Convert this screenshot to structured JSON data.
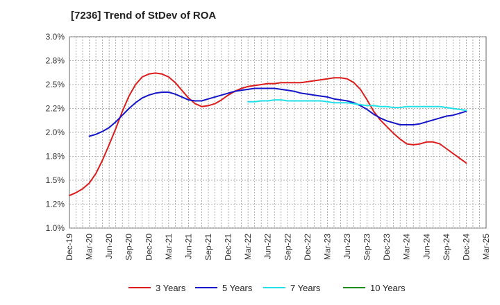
{
  "chart_data": {
    "type": "line",
    "title": "[7236]  Trend of StDev of ROA",
    "xlabel": "",
    "ylabel": "",
    "ylim": [
      1.0,
      3.0
    ],
    "y_ticks": [
      "3.0%",
      "2.8%",
      "2.5%",
      "2.2%",
      "2.0%",
      "1.8%",
      "1.5%",
      "1.2%",
      "1.0%"
    ],
    "y_tick_values": [
      3.0,
      2.75,
      2.5,
      2.25,
      2.0,
      1.75,
      1.5,
      1.25,
      1.0
    ],
    "x_ticks": [
      "Dec-19",
      "Mar-20",
      "Jun-20",
      "Sep-20",
      "Dec-20",
      "Mar-21",
      "Jun-21",
      "Sep-21",
      "Dec-21",
      "Mar-22",
      "Jun-22",
      "Sep-22",
      "Dec-22",
      "Mar-23",
      "Jun-23",
      "Sep-23",
      "Dec-23",
      "Mar-24",
      "Jun-24",
      "Sep-24",
      "Dec-24",
      "Mar-25"
    ],
    "grid": true,
    "legend_position": "bottom",
    "series": [
      {
        "name": "3 Years",
        "color": "#dd1c1c",
        "x": [
          "Dec-19",
          "Jan-20",
          "Feb-20",
          "Mar-20",
          "Apr-20",
          "May-20",
          "Jun-20",
          "Jul-20",
          "Aug-20",
          "Sep-20",
          "Oct-20",
          "Nov-20",
          "Dec-20",
          "Jan-21",
          "Feb-21",
          "Mar-21",
          "Apr-21",
          "May-21",
          "Jun-21",
          "Jul-21",
          "Aug-21",
          "Sep-21",
          "Oct-21",
          "Nov-21",
          "Dec-21",
          "Jan-22",
          "Feb-22",
          "Mar-22",
          "Apr-22",
          "May-22",
          "Jun-22",
          "Jul-22",
          "Aug-22",
          "Sep-22",
          "Oct-22",
          "Nov-22",
          "Dec-22",
          "Jan-23",
          "Feb-23",
          "Mar-23",
          "Apr-23",
          "May-23",
          "Jun-23",
          "Jul-23",
          "Aug-23",
          "Sep-23",
          "Oct-23",
          "Nov-23",
          "Dec-23",
          "Jan-24",
          "Feb-24",
          "Mar-24",
          "Apr-24",
          "May-24",
          "Jun-24",
          "Jul-24",
          "Aug-24",
          "Sep-24",
          "Oct-24",
          "Nov-24",
          "Dec-24"
        ],
        "values": [
          1.34,
          1.37,
          1.41,
          1.47,
          1.57,
          1.71,
          1.87,
          2.04,
          2.22,
          2.38,
          2.5,
          2.58,
          2.61,
          2.62,
          2.61,
          2.58,
          2.52,
          2.44,
          2.36,
          2.3,
          2.27,
          2.28,
          2.3,
          2.34,
          2.39,
          2.43,
          2.46,
          2.48,
          2.49,
          2.5,
          2.51,
          2.51,
          2.52,
          2.52,
          2.52,
          2.52,
          2.53,
          2.54,
          2.55,
          2.56,
          2.57,
          2.57,
          2.56,
          2.52,
          2.45,
          2.34,
          2.22,
          2.13,
          2.06,
          1.99,
          1.93,
          1.88,
          1.87,
          1.88,
          1.9,
          1.9,
          1.88,
          1.83,
          1.78,
          1.73,
          1.68
        ]
      },
      {
        "name": "5 Years",
        "color": "#1414c8",
        "x": [
          "Mar-20",
          "Apr-20",
          "May-20",
          "Jun-20",
          "Jul-20",
          "Aug-20",
          "Sep-20",
          "Oct-20",
          "Nov-20",
          "Dec-20",
          "Jan-21",
          "Feb-21",
          "Mar-21",
          "Apr-21",
          "May-21",
          "Jun-21",
          "Jul-21",
          "Aug-21",
          "Sep-21",
          "Oct-21",
          "Nov-21",
          "Dec-21",
          "Jan-22",
          "Feb-22",
          "Mar-22",
          "Apr-22",
          "May-22",
          "Jun-22",
          "Jul-22",
          "Aug-22",
          "Sep-22",
          "Oct-22",
          "Nov-22",
          "Dec-22",
          "Jan-23",
          "Feb-23",
          "Mar-23",
          "Apr-23",
          "May-23",
          "Jun-23",
          "Jul-23",
          "Aug-23",
          "Sep-23",
          "Oct-23",
          "Nov-23",
          "Dec-23",
          "Jan-24",
          "Feb-24",
          "Mar-24",
          "Apr-24",
          "May-24",
          "Jun-24",
          "Jul-24",
          "Aug-24",
          "Sep-24",
          "Oct-24",
          "Nov-24",
          "Dec-24"
        ],
        "values": [
          1.96,
          1.98,
          2.01,
          2.05,
          2.11,
          2.18,
          2.25,
          2.31,
          2.36,
          2.39,
          2.41,
          2.42,
          2.42,
          2.4,
          2.37,
          2.34,
          2.33,
          2.33,
          2.35,
          2.37,
          2.39,
          2.41,
          2.43,
          2.44,
          2.45,
          2.46,
          2.46,
          2.46,
          2.46,
          2.45,
          2.44,
          2.43,
          2.41,
          2.4,
          2.39,
          2.38,
          2.37,
          2.35,
          2.34,
          2.33,
          2.31,
          2.28,
          2.24,
          2.19,
          2.15,
          2.12,
          2.1,
          2.08,
          2.08,
          2.08,
          2.09,
          2.11,
          2.13,
          2.15,
          2.17,
          2.18,
          2.2,
          2.22
        ]
      },
      {
        "name": "7 Years",
        "color": "#22e0e8",
        "x": [
          "Mar-22",
          "Apr-22",
          "May-22",
          "Jun-22",
          "Jul-22",
          "Aug-22",
          "Sep-22",
          "Oct-22",
          "Nov-22",
          "Dec-22",
          "Jan-23",
          "Feb-23",
          "Mar-23",
          "Apr-23",
          "May-23",
          "Jun-23",
          "Jul-23",
          "Aug-23",
          "Sep-23",
          "Oct-23",
          "Nov-23",
          "Dec-23",
          "Jan-24",
          "Feb-24",
          "Mar-24",
          "Apr-24",
          "May-24",
          "Jun-24",
          "Jul-24",
          "Aug-24",
          "Sep-24",
          "Oct-24",
          "Nov-24",
          "Dec-24"
        ],
        "values": [
          2.32,
          2.32,
          2.33,
          2.33,
          2.34,
          2.34,
          2.33,
          2.33,
          2.33,
          2.33,
          2.33,
          2.33,
          2.32,
          2.31,
          2.31,
          2.31,
          2.3,
          2.29,
          2.28,
          2.28,
          2.27,
          2.27,
          2.26,
          2.26,
          2.27,
          2.27,
          2.27,
          2.27,
          2.27,
          2.27,
          2.26,
          2.25,
          2.24,
          2.23
        ]
      },
      {
        "name": "10 Years",
        "color": "#1e8c1e",
        "x": [],
        "values": []
      }
    ]
  }
}
